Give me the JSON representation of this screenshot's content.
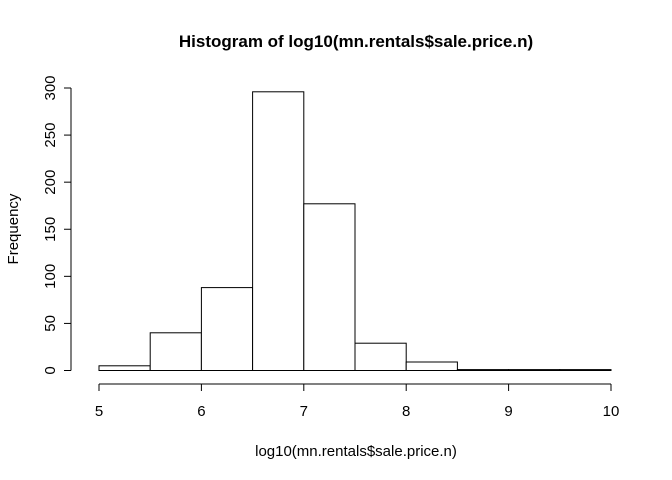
{
  "chart_data": {
    "type": "bar",
    "title": "Histogram of log10(mn.rentals$sale.price.n)",
    "xlabel": "log10(mn.rentals$sale.price.n)",
    "ylabel": "Frequency",
    "bins": [
      {
        "from": 5.0,
        "to": 5.5,
        "count": 5
      },
      {
        "from": 5.5,
        "to": 6.0,
        "count": 40
      },
      {
        "from": 6.0,
        "to": 6.5,
        "count": 88
      },
      {
        "from": 6.5,
        "to": 7.0,
        "count": 296
      },
      {
        "from": 7.0,
        "to": 7.5,
        "count": 177
      },
      {
        "from": 7.5,
        "to": 8.0,
        "count": 29
      },
      {
        "from": 8.0,
        "to": 8.5,
        "count": 9
      },
      {
        "from": 8.5,
        "to": 9.0,
        "count": 1
      },
      {
        "from": 9.0,
        "to": 9.5,
        "count": 1
      },
      {
        "from": 9.5,
        "to": 10.0,
        "count": 1
      }
    ],
    "xlim": [
      5,
      10
    ],
    "ylim": [
      0,
      300
    ],
    "xticks": [
      "5",
      "6",
      "7",
      "8",
      "9",
      "10"
    ],
    "yticks": [
      "0",
      "50",
      "100",
      "150",
      "200",
      "250",
      "300"
    ],
    "grid": false,
    "bar_fill": "#ffffff",
    "bar_stroke": "#000000"
  }
}
